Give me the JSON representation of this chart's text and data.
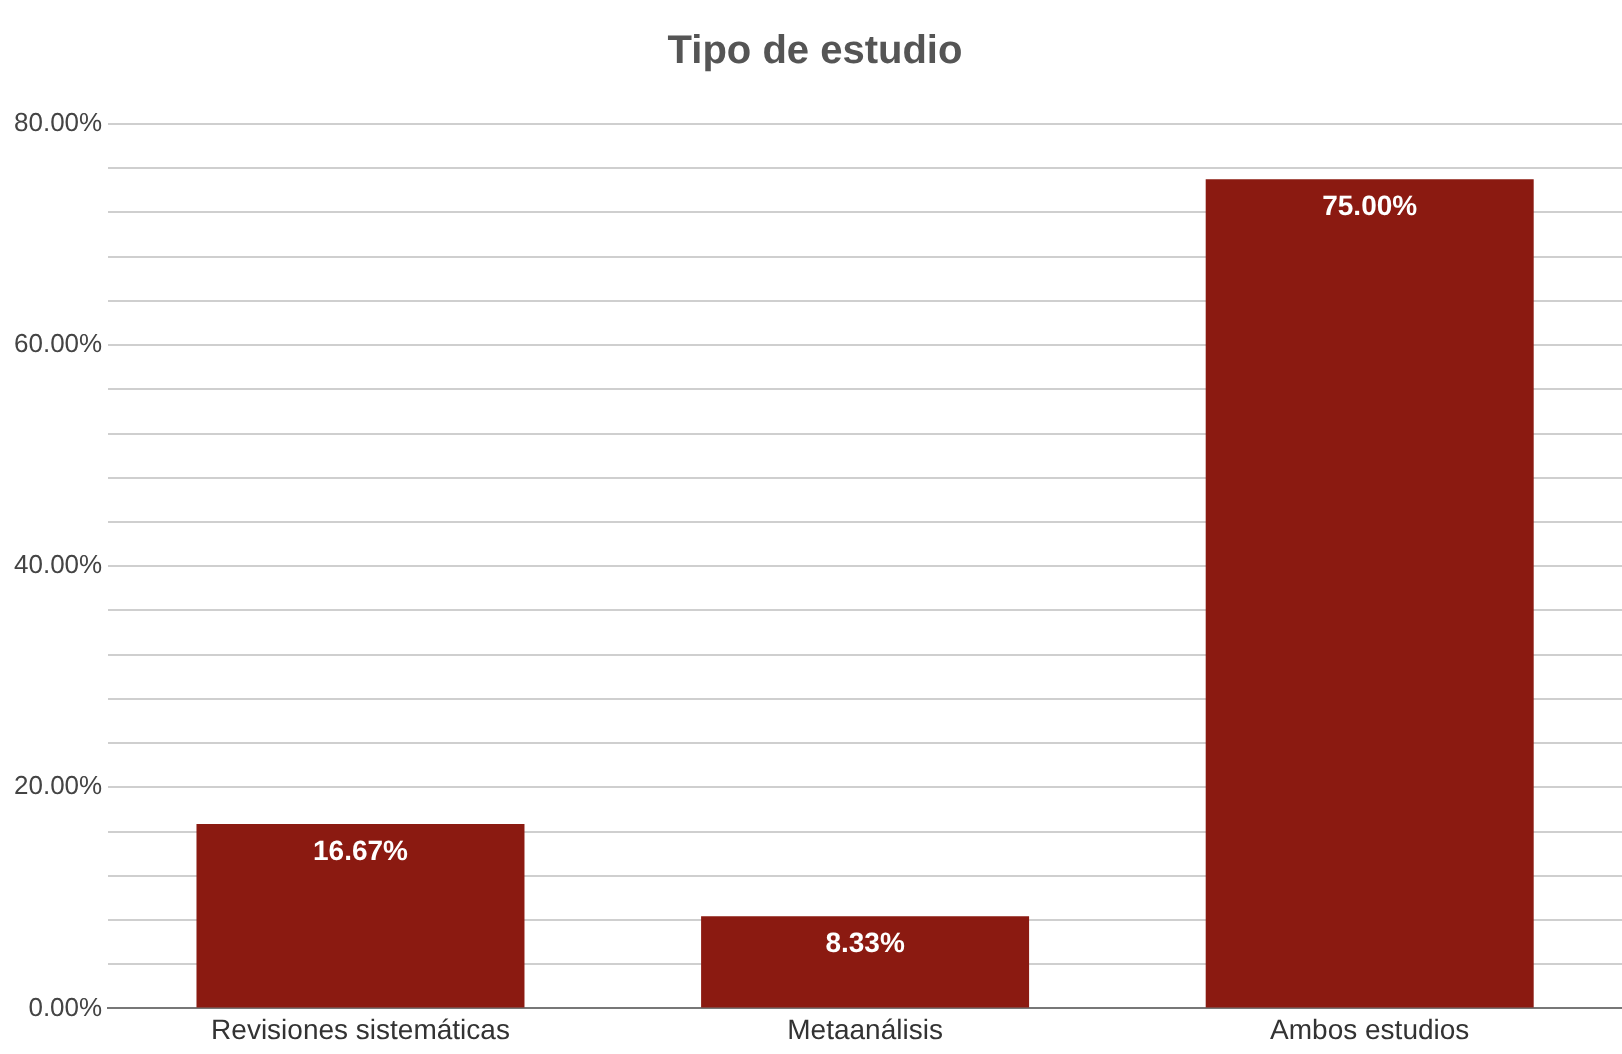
{
  "chart_data": {
    "type": "bar",
    "title": "Tipo de estudio",
    "categories": [
      "Revisiones sistemáticas",
      "Metaanálisis",
      "Ambos estudios"
    ],
    "values": [
      16.67,
      8.33,
      75
    ],
    "value_labels": [
      "16.67%",
      "8.33%",
      "75.00%"
    ],
    "color": "#8b1a11",
    "ylim": [
      0,
      80
    ],
    "yticks": [
      {
        "value": 0,
        "label": "0.00%"
      },
      {
        "value": 4,
        "label": null
      },
      {
        "value": 8,
        "label": null
      },
      {
        "value": 12,
        "label": null
      },
      {
        "value": 16,
        "label": null
      },
      {
        "value": 20,
        "label": "20.00%"
      },
      {
        "value": 24,
        "label": null
      },
      {
        "value": 28,
        "label": null
      },
      {
        "value": 32,
        "label": null
      },
      {
        "value": 36,
        "label": null
      },
      {
        "value": 40,
        "label": "40.00%"
      },
      {
        "value": 44,
        "label": null
      },
      {
        "value": 48,
        "label": null
      },
      {
        "value": 52,
        "label": null
      },
      {
        "value": 56,
        "label": null
      },
      {
        "value": 60,
        "label": "60.00%"
      },
      {
        "value": 64,
        "label": null
      },
      {
        "value": 68,
        "label": null
      },
      {
        "value": 72,
        "label": null
      },
      {
        "value": 76,
        "label": null
      },
      {
        "value": 80,
        "label": "80.00%"
      }
    ],
    "grid": "y",
    "legend": false
  }
}
